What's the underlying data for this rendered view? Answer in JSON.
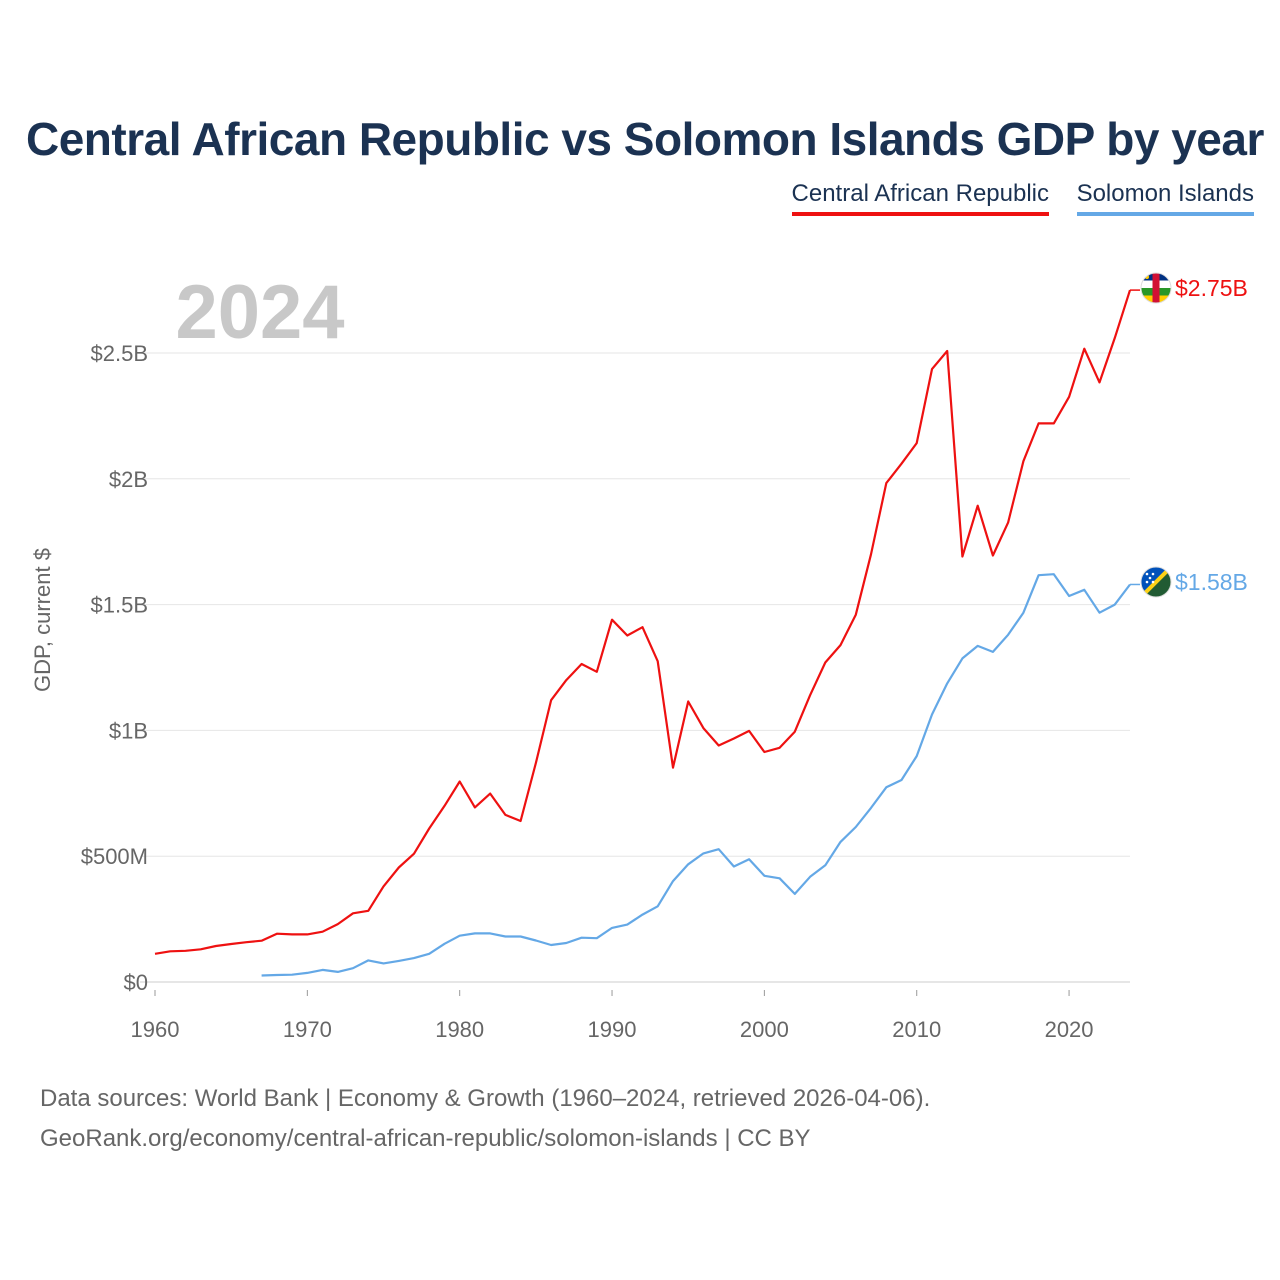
{
  "title": "Central African Republic vs Solomon Islands GDP by year",
  "legend": [
    {
      "label": "Central African Republic",
      "color": "#ee1111"
    },
    {
      "label": "Solomon Islands",
      "color": "#64a8e6"
    }
  ],
  "year_label": "2024",
  "end_labels": {
    "car": "$2.75B",
    "sol": "$1.58B"
  },
  "source_line1": "Data sources: World Bank | Economy & Growth (1960–2024, retrieved 2026-04-06).",
  "source_line2": "GeoRank.org/economy/central-african-republic/solomon-islands | CC BY",
  "chart_data": {
    "type": "line",
    "title": "Central African Republic vs Solomon Islands GDP by year",
    "xlabel": "",
    "ylabel": "GDP, current $",
    "xlim": [
      1960,
      2024
    ],
    "ylim": [
      0,
      2750000000
    ],
    "x_ticks": [
      1960,
      1970,
      1980,
      1990,
      2000,
      2010,
      2020
    ],
    "y_ticks": [
      {
        "value": 0,
        "label": "$0"
      },
      {
        "value": 500000000,
        "label": "$500M"
      },
      {
        "value": 1000000000,
        "label": "$1B"
      },
      {
        "value": 1500000000,
        "label": "$1.5B"
      },
      {
        "value": 2000000000,
        "label": "$2B"
      },
      {
        "value": 2500000000,
        "label": "$2.5B"
      }
    ],
    "grid": true,
    "series": [
      {
        "name": "Central African Republic",
        "color": "#ee1111",
        "x": [
          1960,
          1961,
          1962,
          1963,
          1964,
          1965,
          1966,
          1967,
          1968,
          1969,
          1970,
          1971,
          1972,
          1973,
          1974,
          1975,
          1976,
          1977,
          1978,
          1979,
          1980,
          1981,
          1982,
          1983,
          1984,
          1985,
          1986,
          1987,
          1988,
          1989,
          1990,
          1991,
          1992,
          1993,
          1994,
          1995,
          1996,
          1997,
          1998,
          1999,
          2000,
          2001,
          2002,
          2003,
          2004,
          2005,
          2006,
          2007,
          2008,
          2009,
          2010,
          2011,
          2012,
          2013,
          2014,
          2015,
          2016,
          2017,
          2018,
          2019,
          2020,
          2021,
          2022,
          2023,
          2024
        ],
        "values": [
          112000000,
          122000000,
          124000000,
          130000000,
          143000000,
          151000000,
          158000000,
          164000000,
          192000000,
          189000000,
          189000000,
          200000000,
          230000000,
          273000000,
          283000000,
          380000000,
          455000000,
          510000000,
          610000000,
          700000000,
          797000000,
          694000000,
          749000000,
          664000000,
          640000000,
          871000000,
          1120000000,
          1200000000,
          1264000000,
          1233000000,
          1440000000,
          1377000000,
          1410000000,
          1275000000,
          852000000,
          1115000000,
          1009000000,
          940000000,
          968000000,
          998000000,
          914000000,
          931000000,
          995000000,
          1140000000,
          1270000000,
          1339000000,
          1460000000,
          1700000000,
          1983000000,
          2060000000,
          2142000000,
          2436000000,
          2508000000,
          1691000000,
          1893000000,
          1695000000,
          1826000000,
          2070000000,
          2220000000,
          2220000000,
          2326000000,
          2517000000,
          2383000000,
          2560000000,
          2750000000
        ]
      },
      {
        "name": "Solomon Islands",
        "color": "#64a8e6",
        "x": [
          1967,
          1968,
          1969,
          1970,
          1971,
          1972,
          1973,
          1974,
          1975,
          1976,
          1977,
          1978,
          1979,
          1980,
          1981,
          1982,
          1983,
          1984,
          1985,
          1986,
          1987,
          1988,
          1989,
          1990,
          1991,
          1992,
          1993,
          1994,
          1995,
          1996,
          1997,
          1998,
          1999,
          2000,
          2001,
          2002,
          2003,
          2004,
          2005,
          2006,
          2007,
          2008,
          2009,
          2010,
          2011,
          2012,
          2013,
          2014,
          2015,
          2016,
          2017,
          2018,
          2019,
          2020,
          2021,
          2022,
          2023,
          2024
        ],
        "values": [
          26000000,
          28000000,
          29000000,
          36000000,
          48000000,
          40000000,
          55000000,
          86000000,
          74000000,
          84000000,
          95000000,
          112000000,
          152000000,
          184000000,
          193000000,
          193000000,
          181000000,
          181000000,
          165000000,
          147000000,
          155000000,
          176000000,
          174000000,
          215000000,
          228000000,
          268000000,
          301000000,
          401000000,
          468000000,
          511000000,
          528000000,
          459000000,
          488000000,
          422000000,
          412000000,
          350000000,
          418000000,
          464000000,
          557000000,
          616000000,
          692000000,
          774000000,
          803000000,
          898000000,
          1063000000,
          1187000000,
          1286000000,
          1336000000,
          1312000000,
          1380000000,
          1468000000,
          1617000000,
          1621000000,
          1534000000,
          1559000000,
          1468000000,
          1500000000,
          1580000000
        ]
      }
    ]
  }
}
